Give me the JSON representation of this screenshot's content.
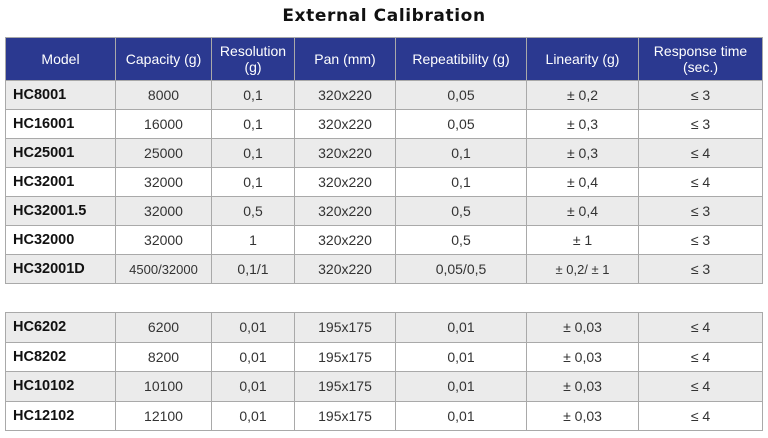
{
  "title": "External Calibration",
  "columns": [
    "Model",
    "Capacity (g)",
    "Resolution (g)",
    "Pan (mm)",
    "Repeatibility (g)",
    "Linearity (g)",
    "Response time (sec.)"
  ],
  "table_main": [
    [
      "HC8001",
      "8000",
      "0,1",
      "320x220",
      "0,05",
      "± 0,2",
      "≤ 3"
    ],
    [
      "HC16001",
      "16000",
      "0,1",
      "320x220",
      "0,05",
      "± 0,3",
      "≤ 3"
    ],
    [
      "HC25001",
      "25000",
      "0,1",
      "320x220",
      "0,1",
      "± 0,3",
      "≤ 4"
    ],
    [
      "HC32001",
      "32000",
      "0,1",
      "320x220",
      "0,1",
      "± 0,4",
      "≤ 4"
    ],
    [
      "HC32001.5",
      "32000",
      "0,5",
      "320x220",
      "0,5",
      "± 0,4",
      "≤ 3"
    ],
    [
      "HC32000",
      "32000",
      "1",
      "320x220",
      "0,5",
      "± 1",
      "≤ 3"
    ],
    [
      "HC32001D",
      "4500/32000",
      "0,1/1",
      "320x220",
      "0,05/0,5",
      "± 0,2/ ± 1",
      "≤ 3"
    ]
  ],
  "table_secondary": [
    [
      "HC6202",
      "6200",
      "0,01",
      "195x175",
      "0,01",
      "± 0,03",
      "≤ 4"
    ],
    [
      "HC8202",
      "8200",
      "0,01",
      "195x175",
      "0,01",
      "± 0,03",
      "≤ 4"
    ],
    [
      "HC10102",
      "10100",
      "0,01",
      "195x175",
      "0,01",
      "± 0,03",
      "≤ 4"
    ],
    [
      "HC12102",
      "12100",
      "0,01",
      "195x175",
      "0,01",
      "± 0,03",
      "≤ 4"
    ]
  ],
  "colors": {
    "header_bg": "#2b3990",
    "header_text": "#ffffff",
    "row_shade": "#ebebeb",
    "border": "#a9a9a9"
  }
}
